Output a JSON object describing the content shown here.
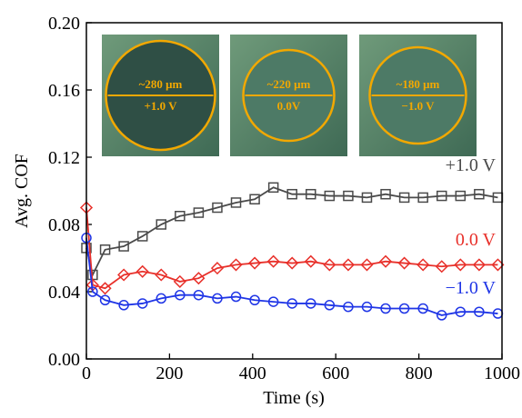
{
  "chart_data": {
    "type": "line",
    "xlabel": "Time (s)",
    "ylabel": "Avg. COF",
    "xlim": [
      0,
      1000
    ],
    "ylim": [
      0,
      0.2
    ],
    "xticks": [
      0,
      200,
      400,
      600,
      800,
      1000
    ],
    "yticks": [
      {
        "value": 0,
        "label": "0.00"
      },
      {
        "value": 0.04,
        "label": "0.04"
      },
      {
        "value": 0.08,
        "label": "0.08"
      },
      {
        "value": 0.12,
        "label": "0.12"
      },
      {
        "value": 0.16,
        "label": "0.16"
      },
      {
        "value": 0.2,
        "label": "0.20"
      }
    ],
    "x": [
      0,
      15,
      45,
      90,
      135,
      180,
      225,
      270,
      315,
      360,
      405,
      450,
      495,
      540,
      585,
      630,
      675,
      720,
      765,
      810,
      855,
      900,
      945,
      990
    ],
    "series": [
      {
        "name": "+1.0 V",
        "color": "#4a4a4a",
        "marker": "square",
        "values": [
          0.066,
          0.05,
          0.065,
          0.067,
          0.073,
          0.08,
          0.085,
          0.087,
          0.09,
          0.093,
          0.095,
          0.102,
          0.098,
          0.098,
          0.097,
          0.097,
          0.096,
          0.098,
          0.096,
          0.096,
          0.097,
          0.097,
          0.098,
          0.096
        ]
      },
      {
        "name": "0.0 V",
        "color": "#e8302a",
        "marker": "diamond",
        "values": [
          0.09,
          0.044,
          0.042,
          0.05,
          0.052,
          0.05,
          0.046,
          0.048,
          0.054,
          0.056,
          0.057,
          0.058,
          0.057,
          0.058,
          0.056,
          0.056,
          0.056,
          0.058,
          0.057,
          0.056,
          0.055,
          0.056,
          0.056,
          0.056
        ]
      },
      {
        "name": "−1.0 V",
        "color": "#1f35e6",
        "marker": "circle",
        "values": [
          0.072,
          0.04,
          0.035,
          0.032,
          0.033,
          0.036,
          0.038,
          0.038,
          0.036,
          0.037,
          0.035,
          0.034,
          0.033,
          0.033,
          0.032,
          0.031,
          0.031,
          0.03,
          0.03,
          0.03,
          0.026,
          0.028,
          0.028,
          0.027
        ]
      }
    ],
    "insets": [
      {
        "size": "~280 μm",
        "voltage": "+1.0 V"
      },
      {
        "size": "~220 μm",
        "voltage": "0.0V"
      },
      {
        "size": "~180 μm",
        "voltage": "−1.0 V"
      }
    ]
  }
}
